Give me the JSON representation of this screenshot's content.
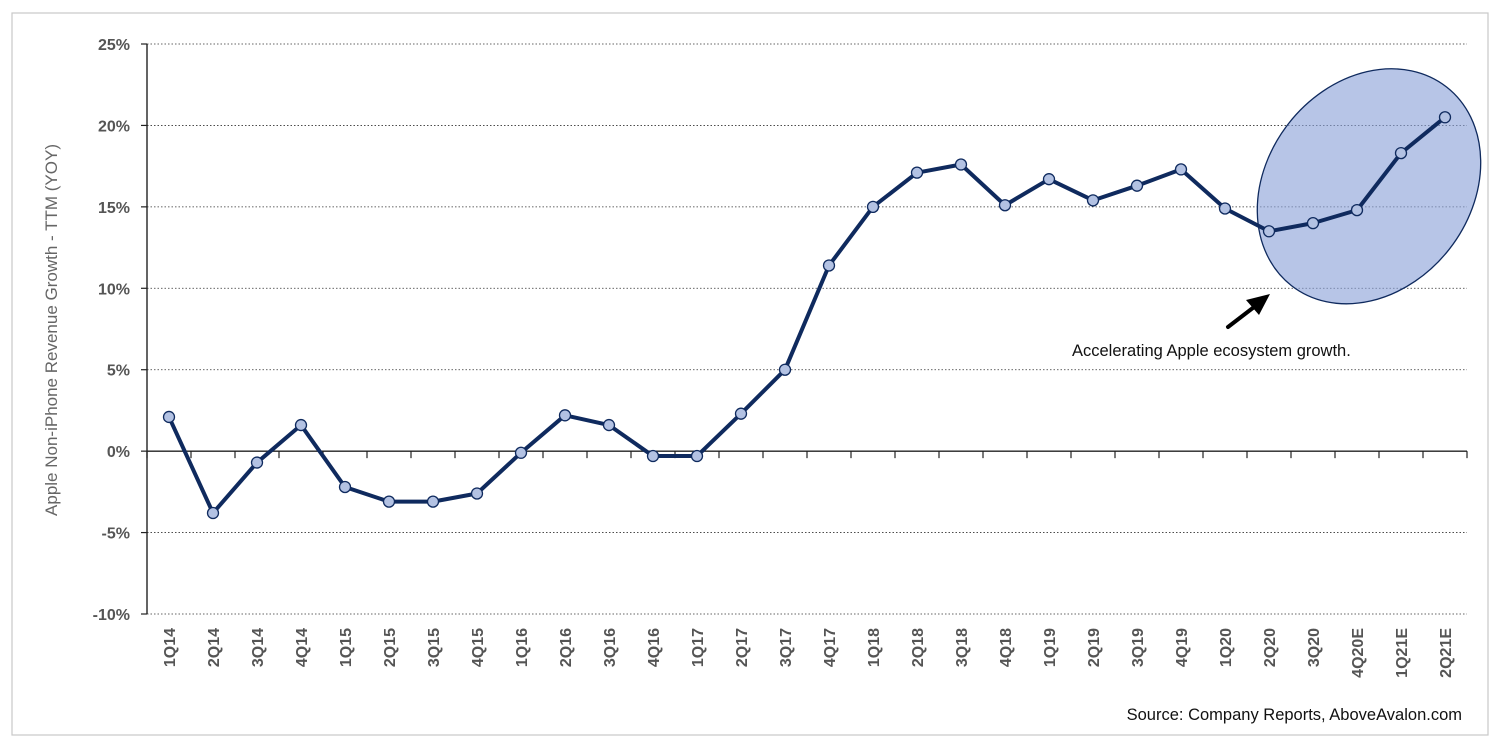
{
  "chart_data": {
    "type": "line",
    "title": "",
    "xlabel": "",
    "ylabel": "Apple Non-iPhone Revenue Growth - TTM (YOY)",
    "ylim": [
      -10,
      25
    ],
    "yticks": [
      -10,
      -5,
      0,
      5,
      10,
      15,
      20,
      25
    ],
    "ytick_labels": [
      "-10%",
      "-5%",
      "0%",
      "5%",
      "10%",
      "15%",
      "20%",
      "25%"
    ],
    "grid": true,
    "categories": [
      "1Q14",
      "2Q14",
      "3Q14",
      "4Q14",
      "1Q15",
      "2Q15",
      "3Q15",
      "4Q15",
      "1Q16",
      "2Q16",
      "3Q16",
      "4Q16",
      "1Q17",
      "2Q17",
      "3Q17",
      "4Q17",
      "1Q18",
      "2Q18",
      "3Q18",
      "4Q18",
      "1Q19",
      "2Q19",
      "3Q19",
      "4Q19",
      "1Q20",
      "2Q20",
      "3Q20",
      "4Q20E",
      "1Q21E",
      "2Q21E"
    ],
    "series": [
      {
        "values": [
          2.1,
          -3.8,
          -0.7,
          1.6,
          -2.2,
          -3.1,
          -3.1,
          -2.6,
          -0.1,
          2.2,
          1.6,
          -0.3,
          -0.3,
          2.3,
          5.0,
          11.4,
          15.0,
          17.1,
          17.6,
          15.1,
          16.7,
          15.4,
          16.3,
          17.3,
          14.9,
          13.5,
          14.0,
          14.8,
          18.3,
          20.5
        ],
        "color": "#0f2a5e",
        "marker_fill": "#b3c2e3"
      }
    ],
    "annotations": [
      {
        "text": "Accelerating Apple ecosystem growth."
      }
    ],
    "highlight_color": "#8aa2d8",
    "source": "Source: Company Reports, AboveAvalon.com"
  }
}
